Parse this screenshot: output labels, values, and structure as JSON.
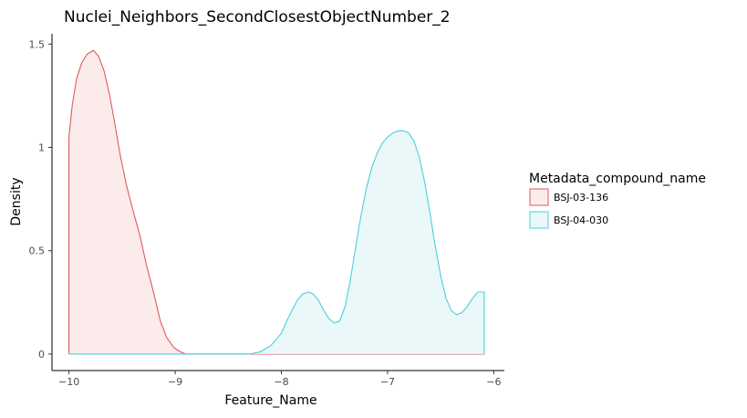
{
  "chart_data": {
    "type": "area",
    "title": "Nuclei_Neighbors_SecondClosestObjectNumber_2",
    "xlabel": "Feature_Name",
    "ylabel": "Density",
    "xlim": [
      -10.16,
      -5.9
    ],
    "ylim": [
      -0.08,
      1.55
    ],
    "x_ticks": [
      {
        "value": -10,
        "label": "−10"
      },
      {
        "value": -9,
        "label": "−9"
      },
      {
        "value": -8,
        "label": "−8"
      },
      {
        "value": -7,
        "label": "−7"
      },
      {
        "value": -6,
        "label": "−6"
      }
    ],
    "y_ticks": [
      {
        "value": 0,
        "label": "0"
      },
      {
        "value": 0.5,
        "label": "0.5"
      },
      {
        "value": 1,
        "label": "1"
      },
      {
        "value": 1.5,
        "label": "1.5"
      }
    ],
    "grid": false,
    "legend": {
      "title": "Metadata_compound_name",
      "position": "right"
    },
    "series": [
      {
        "name": "BSJ-03-136",
        "line_color": "#e05a5a",
        "fill_color": "#fcebeb",
        "x": [
          -10,
          -10,
          -9.97,
          -9.93,
          -9.88,
          -9.83,
          -9.77,
          -9.72,
          -9.67,
          -9.62,
          -9.57,
          -9.52,
          -9.46,
          -9.4,
          -9.33,
          -9.27,
          -9.2,
          -9.14,
          -9.08,
          -9.01,
          -8.95,
          -8.9,
          -8.8,
          -8.6,
          -8.3,
          -8.0,
          -7.7,
          -7.4,
          -7.1,
          -6.8,
          -6.5,
          -6.2,
          -6.09,
          -6.09
        ],
        "y": [
          0,
          1.05,
          1.2,
          1.33,
          1.41,
          1.45,
          1.47,
          1.44,
          1.37,
          1.26,
          1.12,
          0.97,
          0.82,
          0.7,
          0.57,
          0.43,
          0.29,
          0.16,
          0.08,
          0.03,
          0.01,
          0.0,
          0,
          0,
          0,
          0,
          0,
          0,
          0,
          0,
          0,
          0,
          0,
          0
        ]
      },
      {
        "name": "BSJ-04-030",
        "line_color": "#4ccfdc",
        "fill_color": "#eaf8fa",
        "x": [
          -10,
          -9.5,
          -9.0,
          -8.6,
          -8.3,
          -8.2,
          -8.1,
          -8.0,
          -7.95,
          -7.9,
          -7.85,
          -7.8,
          -7.74,
          -7.7,
          -7.65,
          -7.6,
          -7.55,
          -7.5,
          -7.45,
          -7.4,
          -7.35,
          -7.3,
          -7.25,
          -7.2,
          -7.15,
          -7.1,
          -7.05,
          -7.0,
          -6.95,
          -6.9,
          -6.85,
          -6.8,
          -6.75,
          -6.7,
          -6.65,
          -6.6,
          -6.55,
          -6.5,
          -6.45,
          -6.4,
          -6.35,
          -6.3,
          -6.25,
          -6.2,
          -6.15,
          -6.1,
          -6.09,
          -6.09
        ],
        "y": [
          0,
          0,
          0,
          0,
          0.0,
          0.01,
          0.04,
          0.1,
          0.16,
          0.21,
          0.26,
          0.29,
          0.3,
          0.29,
          0.26,
          0.21,
          0.17,
          0.15,
          0.16,
          0.23,
          0.36,
          0.52,
          0.67,
          0.8,
          0.9,
          0.97,
          1.02,
          1.05,
          1.07,
          1.08,
          1.08,
          1.07,
          1.03,
          0.95,
          0.83,
          0.68,
          0.52,
          0.38,
          0.27,
          0.21,
          0.19,
          0.2,
          0.23,
          0.27,
          0.3,
          0.3,
          0.3,
          0
        ]
      }
    ]
  }
}
